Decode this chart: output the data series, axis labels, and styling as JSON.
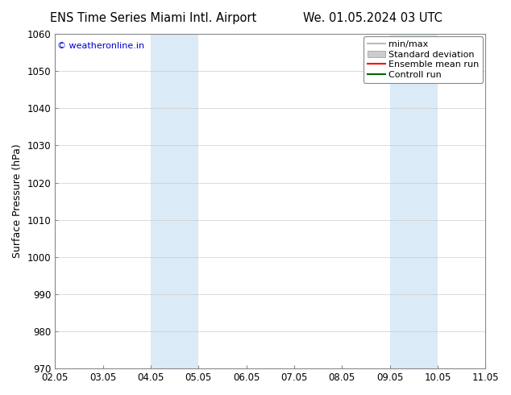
{
  "title_left": "ENS Time Series Miami Intl. Airport",
  "title_right": "We. 01.05.2024 03 UTC",
  "ylabel": "Surface Pressure (hPa)",
  "ylim": [
    970,
    1060
  ],
  "yticks": [
    970,
    980,
    990,
    1000,
    1010,
    1020,
    1030,
    1040,
    1050,
    1060
  ],
  "xtick_labels": [
    "02.05",
    "03.05",
    "04.05",
    "05.05",
    "06.05",
    "07.05",
    "08.05",
    "09.05",
    "10.05",
    "11.05"
  ],
  "watermark": "© weatheronline.in",
  "watermark_color": "#0000cc",
  "shaded_regions": [
    {
      "xstart": 2,
      "xend": 3,
      "color": "#daeaf7"
    },
    {
      "xstart": 7,
      "xend": 8,
      "color": "#daeaf7"
    }
  ],
  "legend_entries": [
    {
      "label": "min/max",
      "color": "#aaaaaa",
      "lw": 1.2,
      "type": "line"
    },
    {
      "label": "Standard deviation",
      "color": "#cccccc",
      "lw": 6,
      "type": "patch"
    },
    {
      "label": "Ensemble mean run",
      "color": "#ff0000",
      "lw": 1.5,
      "type": "line"
    },
    {
      "label": "Controll run",
      "color": "#006600",
      "lw": 1.5,
      "type": "line"
    }
  ],
  "background_color": "#ffffff",
  "plot_bg_color": "#ffffff",
  "grid_color": "#cccccc",
  "title_fontsize": 10.5,
  "ylabel_fontsize": 9,
  "tick_fontsize": 8.5,
  "legend_fontsize": 8,
  "watermark_fontsize": 8
}
